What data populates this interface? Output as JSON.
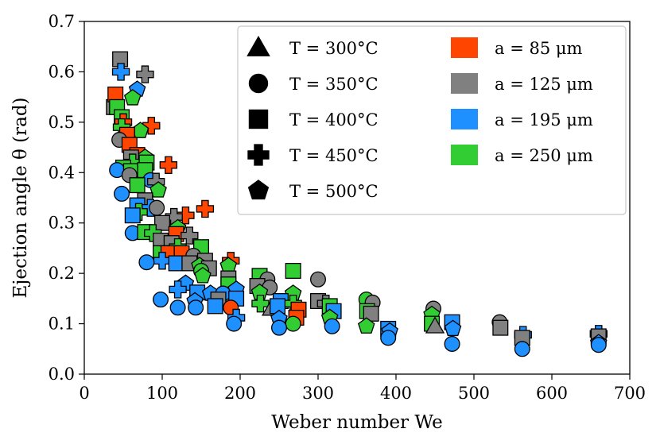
{
  "chart_data": {
    "type": "scatter",
    "title": "",
    "xlabel": "Weber number We",
    "ylabel": "Ejection angle θ (rad)",
    "xlim": [
      0,
      700
    ],
    "ylim": [
      0.0,
      0.7
    ],
    "xticks": [
      0,
      100,
      200,
      300,
      400,
      500,
      600,
      700
    ],
    "xtick_labels": [
      "0",
      "100",
      "200",
      "300",
      "400",
      "500",
      "600",
      "700"
    ],
    "yticks": [
      0.0,
      0.1,
      0.2,
      0.3,
      0.4,
      0.5,
      0.6,
      0.7
    ],
    "ytick_labels": [
      "0.0",
      "0.1",
      "0.2",
      "0.3",
      "0.4",
      "0.5",
      "0.6",
      "0.7"
    ],
    "grid": false,
    "legend_position": "top-right",
    "legend_markers": [
      {
        "label": "T = 300°C",
        "shape": "triangle"
      },
      {
        "label": "T = 350°C",
        "shape": "circle"
      },
      {
        "label": "T = 400°C",
        "shape": "square"
      },
      {
        "label": "T = 450°C",
        "shape": "plus"
      },
      {
        "label": "T = 500°C",
        "shape": "pentagon"
      }
    ],
    "legend_colors": [
      {
        "label": "a = 85 μm",
        "color": "#ff4500"
      },
      {
        "label": "a = 125 μm",
        "color": "#808080"
      },
      {
        "label": "a = 195 μm",
        "color": "#1e90ff"
      },
      {
        "label": "a = 250 μm",
        "color": "#32cd32"
      }
    ],
    "points": [
      {
        "x": 38,
        "y": 0.53,
        "s": "square",
        "c": "#808080"
      },
      {
        "x": 40,
        "y": 0.555,
        "s": "square",
        "c": "#ff4500"
      },
      {
        "x": 42,
        "y": 0.53,
        "s": "square",
        "c": "#32cd32"
      },
      {
        "x": 46,
        "y": 0.625,
        "s": "square",
        "c": "#808080"
      },
      {
        "x": 47,
        "y": 0.6,
        "s": "plus",
        "c": "#1e90ff"
      },
      {
        "x": 78,
        "y": 0.595,
        "s": "plus",
        "c": "#808080"
      },
      {
        "x": 68,
        "y": 0.565,
        "s": "pentagon",
        "c": "#1e90ff"
      },
      {
        "x": 62,
        "y": 0.548,
        "s": "pentagon",
        "c": "#32cd32"
      },
      {
        "x": 48,
        "y": 0.51,
        "s": "square",
        "c": "#32cd32"
      },
      {
        "x": 50,
        "y": 0.5,
        "s": "plus",
        "c": "#ff4500"
      },
      {
        "x": 48,
        "y": 0.49,
        "s": "plus",
        "c": "#32cd32"
      },
      {
        "x": 86,
        "y": 0.493,
        "s": "plus",
        "c": "#ff4500"
      },
      {
        "x": 72,
        "y": 0.483,
        "s": "pentagon",
        "c": "#32cd32"
      },
      {
        "x": 55,
        "y": 0.475,
        "s": "square",
        "c": "#ff4500"
      },
      {
        "x": 45,
        "y": 0.465,
        "s": "circle",
        "c": "#808080"
      },
      {
        "x": 58,
        "y": 0.455,
        "s": "square",
        "c": "#ff4500"
      },
      {
        "x": 68,
        "y": 0.435,
        "s": "square",
        "c": "#ff4500"
      },
      {
        "x": 78,
        "y": 0.43,
        "s": "pentagon",
        "c": "#32cd32"
      },
      {
        "x": 60,
        "y": 0.43,
        "s": "square",
        "c": "#808080"
      },
      {
        "x": 62,
        "y": 0.42,
        "s": "plus",
        "c": "#32cd32"
      },
      {
        "x": 80,
        "y": 0.42,
        "s": "square",
        "c": "#32cd32"
      },
      {
        "x": 50,
        "y": 0.41,
        "s": "square",
        "c": "#32cd32"
      },
      {
        "x": 108,
        "y": 0.415,
        "s": "plus",
        "c": "#ff4500"
      },
      {
        "x": 42,
        "y": 0.405,
        "s": "circle",
        "c": "#1e90ff"
      },
      {
        "x": 60,
        "y": 0.403,
        "s": "square",
        "c": "#32cd32"
      },
      {
        "x": 78,
        "y": 0.405,
        "s": "square",
        "c": "#32cd32"
      },
      {
        "x": 58,
        "y": 0.395,
        "s": "circle",
        "c": "#808080"
      },
      {
        "x": 85,
        "y": 0.385,
        "s": "circle",
        "c": "#1e90ff"
      },
      {
        "x": 92,
        "y": 0.382,
        "s": "plus",
        "c": "#808080"
      },
      {
        "x": 68,
        "y": 0.375,
        "s": "square",
        "c": "#32cd32"
      },
      {
        "x": 95,
        "y": 0.365,
        "s": "pentagon",
        "c": "#32cd32"
      },
      {
        "x": 48,
        "y": 0.358,
        "s": "circle",
        "c": "#1e90ff"
      },
      {
        "x": 78,
        "y": 0.345,
        "s": "square",
        "c": "#808080"
      },
      {
        "x": 68,
        "y": 0.335,
        "s": "square",
        "c": "#1e90ff"
      },
      {
        "x": 85,
        "y": 0.33,
        "s": "plus",
        "c": "#1e90ff"
      },
      {
        "x": 93,
        "y": 0.33,
        "s": "circle",
        "c": "#808080"
      },
      {
        "x": 70,
        "y": 0.322,
        "s": "plus",
        "c": "#32cd32"
      },
      {
        "x": 62,
        "y": 0.315,
        "s": "square",
        "c": "#1e90ff"
      },
      {
        "x": 130,
        "y": 0.315,
        "s": "plus",
        "c": "#ff4500"
      },
      {
        "x": 115,
        "y": 0.312,
        "s": "plus",
        "c": "#808080"
      },
      {
        "x": 155,
        "y": 0.328,
        "s": "plus",
        "c": "#ff4500"
      },
      {
        "x": 100,
        "y": 0.3,
        "s": "square",
        "c": "#808080"
      },
      {
        "x": 120,
        "y": 0.29,
        "s": "pentagon",
        "c": "#32cd32"
      },
      {
        "x": 62,
        "y": 0.28,
        "s": "circle",
        "c": "#1e90ff"
      },
      {
        "x": 78,
        "y": 0.282,
        "s": "square",
        "c": "#32cd32"
      },
      {
        "x": 88,
        "y": 0.28,
        "s": "plus",
        "c": "#32cd32"
      },
      {
        "x": 118,
        "y": 0.278,
        "s": "square",
        "c": "#ff4500"
      },
      {
        "x": 135,
        "y": 0.275,
        "s": "plus",
        "c": "#808080"
      },
      {
        "x": 98,
        "y": 0.265,
        "s": "square",
        "c": "#808080"
      },
      {
        "x": 112,
        "y": 0.26,
        "s": "square",
        "c": "#808080"
      },
      {
        "x": 120,
        "y": 0.252,
        "s": "plus",
        "c": "#32cd32"
      },
      {
        "x": 150,
        "y": 0.252,
        "s": "square",
        "c": "#32cd32"
      },
      {
        "x": 98,
        "y": 0.24,
        "s": "square",
        "c": "#32cd32"
      },
      {
        "x": 108,
        "y": 0.24,
        "s": "square",
        "c": "#ff4500"
      },
      {
        "x": 125,
        "y": 0.24,
        "s": "square",
        "c": "#ff4500"
      },
      {
        "x": 140,
        "y": 0.235,
        "s": "circle",
        "c": "#808080"
      },
      {
        "x": 100,
        "y": 0.225,
        "s": "plus",
        "c": "#1e90ff"
      },
      {
        "x": 118,
        "y": 0.22,
        "s": "square",
        "c": "#1e90ff"
      },
      {
        "x": 135,
        "y": 0.22,
        "s": "square",
        "c": "#808080"
      },
      {
        "x": 155,
        "y": 0.225,
        "s": "square",
        "c": "#808080"
      },
      {
        "x": 80,
        "y": 0.222,
        "s": "circle",
        "c": "#1e90ff"
      },
      {
        "x": 148,
        "y": 0.215,
        "s": "pentagon",
        "c": "#32cd32"
      },
      {
        "x": 160,
        "y": 0.21,
        "s": "square",
        "c": "#808080"
      },
      {
        "x": 150,
        "y": 0.205,
        "s": "circle",
        "c": "#32cd32"
      },
      {
        "x": 188,
        "y": 0.225,
        "s": "plus",
        "c": "#ff4500"
      },
      {
        "x": 185,
        "y": 0.215,
        "s": "pentagon",
        "c": "#32cd32"
      },
      {
        "x": 152,
        "y": 0.195,
        "s": "pentagon",
        "c": "#32cd32"
      },
      {
        "x": 185,
        "y": 0.19,
        "s": "square",
        "c": "#808080"
      },
      {
        "x": 225,
        "y": 0.195,
        "s": "square",
        "c": "#32cd32"
      },
      {
        "x": 235,
        "y": 0.188,
        "s": "circle",
        "c": "#808080"
      },
      {
        "x": 268,
        "y": 0.205,
        "s": "square",
        "c": "#32cd32"
      },
      {
        "x": 300,
        "y": 0.188,
        "s": "circle",
        "c": "#808080"
      },
      {
        "x": 130,
        "y": 0.18,
        "s": "pentagon",
        "c": "#1e90ff"
      },
      {
        "x": 185,
        "y": 0.178,
        "s": "square",
        "c": "#32cd32"
      },
      {
        "x": 222,
        "y": 0.175,
        "s": "square",
        "c": "#808080"
      },
      {
        "x": 238,
        "y": 0.172,
        "s": "circle",
        "c": "#808080"
      },
      {
        "x": 120,
        "y": 0.168,
        "s": "plus",
        "c": "#1e90ff"
      },
      {
        "x": 195,
        "y": 0.168,
        "s": "pentagon",
        "c": "#1e90ff"
      },
      {
        "x": 145,
        "y": 0.162,
        "s": "square",
        "c": "#1e90ff"
      },
      {
        "x": 162,
        "y": 0.16,
        "s": "pentagon",
        "c": "#1e90ff"
      },
      {
        "x": 178,
        "y": 0.16,
        "s": "circle",
        "c": "#1e90ff"
      },
      {
        "x": 225,
        "y": 0.162,
        "s": "pentagon",
        "c": "#32cd32"
      },
      {
        "x": 268,
        "y": 0.16,
        "s": "pentagon",
        "c": "#32cd32"
      },
      {
        "x": 195,
        "y": 0.15,
        "s": "square",
        "c": "#1e90ff"
      },
      {
        "x": 98,
        "y": 0.148,
        "s": "circle",
        "c": "#1e90ff"
      },
      {
        "x": 142,
        "y": 0.145,
        "s": "pentagon",
        "c": "#1e90ff"
      },
      {
        "x": 172,
        "y": 0.148,
        "s": "square",
        "c": "#808080"
      },
      {
        "x": 252,
        "y": 0.145,
        "s": "square",
        "c": "#1e90ff"
      },
      {
        "x": 362,
        "y": 0.148,
        "s": "circle",
        "c": "#32cd32"
      },
      {
        "x": 300,
        "y": 0.145,
        "s": "square",
        "c": "#808080"
      },
      {
        "x": 310,
        "y": 0.14,
        "s": "plus",
        "c": "#808080"
      },
      {
        "x": 370,
        "y": 0.142,
        "s": "circle",
        "c": "#808080"
      },
      {
        "x": 226,
        "y": 0.14,
        "s": "plus",
        "c": "#32cd32"
      },
      {
        "x": 268,
        "y": 0.14,
        "s": "plus",
        "c": "#32cd32"
      },
      {
        "x": 315,
        "y": 0.135,
        "s": "square",
        "c": "#32cd32"
      },
      {
        "x": 120,
        "y": 0.132,
        "s": "circle",
        "c": "#1e90ff"
      },
      {
        "x": 143,
        "y": 0.132,
        "s": "circle",
        "c": "#1e90ff"
      },
      {
        "x": 168,
        "y": 0.135,
        "s": "square",
        "c": "#1e90ff"
      },
      {
        "x": 188,
        "y": 0.132,
        "s": "circle",
        "c": "#ff4500"
      },
      {
        "x": 240,
        "y": 0.13,
        "s": "triangle",
        "c": "#808080"
      },
      {
        "x": 248,
        "y": 0.135,
        "s": "square",
        "c": "#1e90ff"
      },
      {
        "x": 275,
        "y": 0.128,
        "s": "square",
        "c": "#ff4500"
      },
      {
        "x": 320,
        "y": 0.125,
        "s": "square",
        "c": "#1e90ff"
      },
      {
        "x": 363,
        "y": 0.125,
        "s": "square",
        "c": "#32cd32"
      },
      {
        "x": 368,
        "y": 0.12,
        "s": "square",
        "c": "#808080"
      },
      {
        "x": 448,
        "y": 0.13,
        "s": "circle",
        "c": "#808080"
      },
      {
        "x": 446,
        "y": 0.118,
        "s": "pentagon",
        "c": "#32cd32"
      },
      {
        "x": 195,
        "y": 0.112,
        "s": "plus",
        "c": "#1e90ff"
      },
      {
        "x": 250,
        "y": 0.11,
        "s": "pentagon",
        "c": "#1e90ff"
      },
      {
        "x": 272,
        "y": 0.112,
        "s": "square",
        "c": "#ff4500"
      },
      {
        "x": 315,
        "y": 0.112,
        "s": "pentagon",
        "c": "#32cd32"
      },
      {
        "x": 390,
        "y": 0.09,
        "s": "square",
        "c": "#1e90ff"
      },
      {
        "x": 392,
        "y": 0.085,
        "s": "pentagon",
        "c": "#1e90ff"
      },
      {
        "x": 446,
        "y": 0.1,
        "s": "square",
        "c": "#32cd32"
      },
      {
        "x": 450,
        "y": 0.095,
        "s": "triangle",
        "c": "#808080"
      },
      {
        "x": 472,
        "y": 0.103,
        "s": "square",
        "c": "#1e90ff"
      },
      {
        "x": 473,
        "y": 0.09,
        "s": "pentagon",
        "c": "#1e90ff"
      },
      {
        "x": 533,
        "y": 0.103,
        "s": "circle",
        "c": "#808080"
      },
      {
        "x": 534,
        "y": 0.092,
        "s": "square",
        "c": "#808080"
      },
      {
        "x": 563,
        "y": 0.078,
        "s": "plus",
        "c": "#1e90ff"
      },
      {
        "x": 562,
        "y": 0.072,
        "s": "square",
        "c": "#808080"
      },
      {
        "x": 660,
        "y": 0.08,
        "s": "plus",
        "c": "#1e90ff"
      },
      {
        "x": 660,
        "y": 0.075,
        "s": "square",
        "c": "#808080"
      },
      {
        "x": 192,
        "y": 0.1,
        "s": "circle",
        "c": "#1e90ff"
      },
      {
        "x": 268,
        "y": 0.1,
        "s": "circle",
        "c": "#32cd32"
      },
      {
        "x": 362,
        "y": 0.095,
        "s": "pentagon",
        "c": "#32cd32"
      },
      {
        "x": 250,
        "y": 0.092,
        "s": "circle",
        "c": "#1e90ff"
      },
      {
        "x": 318,
        "y": 0.095,
        "s": "circle",
        "c": "#1e90ff"
      },
      {
        "x": 390,
        "y": 0.072,
        "s": "circle",
        "c": "#1e90ff"
      },
      {
        "x": 472,
        "y": 0.06,
        "s": "circle",
        "c": "#1e90ff"
      },
      {
        "x": 562,
        "y": 0.05,
        "s": "circle",
        "c": "#1e90ff"
      },
      {
        "x": 660,
        "y": 0.062,
        "s": "pentagon",
        "c": "#1e90ff"
      },
      {
        "x": 660,
        "y": 0.058,
        "s": "circle",
        "c": "#1e90ff"
      }
    ]
  }
}
